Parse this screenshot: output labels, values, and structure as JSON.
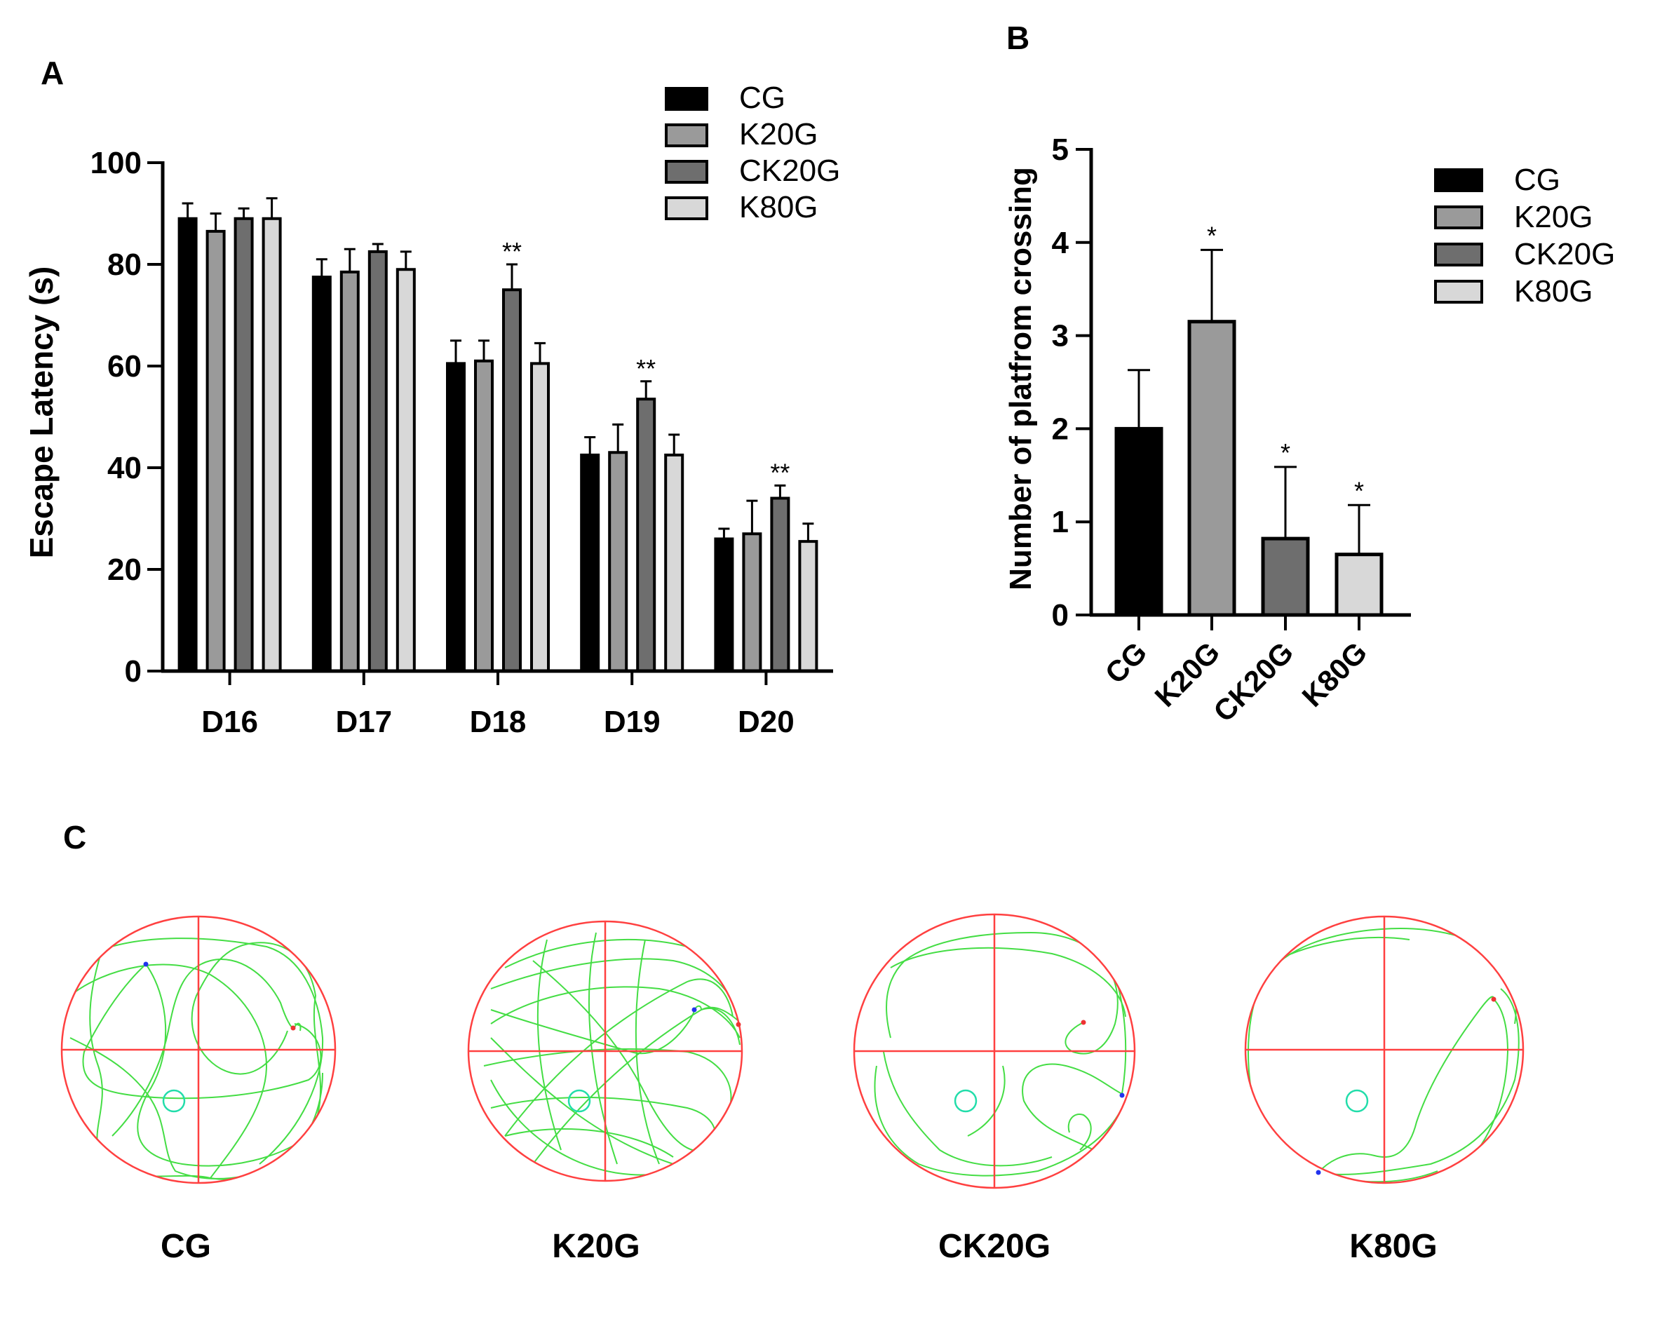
{
  "panels": {
    "a_label": "A",
    "b_label": "B",
    "c_label": "C"
  },
  "chart_data": [
    {
      "type": "bar",
      "panel": "A",
      "title": "",
      "xlabel": "",
      "ylabel": "Escape Latency (s)",
      "ylim": [
        0,
        100
      ],
      "yticks": [
        "0",
        "20",
        "40",
        "60",
        "80",
        "100"
      ],
      "categories": [
        "D16",
        "D17",
        "D18",
        "D19",
        "D20"
      ],
      "series": [
        {
          "name": "CG",
          "color": "#000000",
          "values": [
            89,
            77.5,
            60.5,
            42.5,
            26
          ],
          "errors": [
            3,
            3.5,
            4.5,
            3.5,
            2
          ]
        },
        {
          "name": "K20G",
          "color": "#9a9a9a",
          "values": [
            86.5,
            78.5,
            61,
            43,
            27
          ],
          "errors": [
            3.5,
            4.5,
            4,
            5.5,
            6.5
          ]
        },
        {
          "name": "CK20G",
          "color": "#6e6e6e",
          "values": [
            89,
            82.5,
            75,
            53.5,
            34
          ],
          "errors": [
            2,
            1.5,
            5,
            3.5,
            2.5
          ]
        },
        {
          "name": "K80G",
          "color": "#d8d8d8",
          "values": [
            89,
            79,
            60.5,
            42.5,
            25.5
          ],
          "errors": [
            4,
            3.5,
            4,
            4,
            3.5
          ]
        }
      ],
      "annotations": [
        {
          "category": "D18",
          "series": "CK20G",
          "text": "**"
        },
        {
          "category": "D19",
          "series": "CK20G",
          "text": "**"
        },
        {
          "category": "D20",
          "series": "CK20G",
          "text": "**"
        }
      ],
      "legend": "top-right"
    },
    {
      "type": "bar",
      "panel": "B",
      "title": "",
      "xlabel": "",
      "ylabel": "Number of  platfrom crossing",
      "ylim": [
        0,
        5
      ],
      "yticks": [
        "0",
        "1",
        "2",
        "3",
        "4",
        "5"
      ],
      "categories": [
        "CG",
        "K20G",
        "CK20G",
        "K80G"
      ],
      "values": [
        2.0,
        3.15,
        0.82,
        0.65
      ],
      "errors": [
        0.63,
        0.77,
        0.77,
        0.53
      ],
      "colors": [
        "#000000",
        "#9a9a9a",
        "#6e6e6e",
        "#d8d8d8"
      ],
      "annotations": [
        {
          "category": "K20G",
          "text": "*"
        },
        {
          "category": "CK20G",
          "text": "*"
        },
        {
          "category": "K80G",
          "text": "*"
        }
      ],
      "legend_labels": [
        "CG",
        "K20G",
        "CK20G",
        "K80G"
      ],
      "legend": "top-right"
    }
  ],
  "tracks": {
    "labels": [
      "CG",
      "K20G",
      "CK20G",
      "K80G"
    ],
    "pool_color": "#ff4040",
    "path_color": "#44dd44",
    "platform_color": "#22ddaa"
  }
}
